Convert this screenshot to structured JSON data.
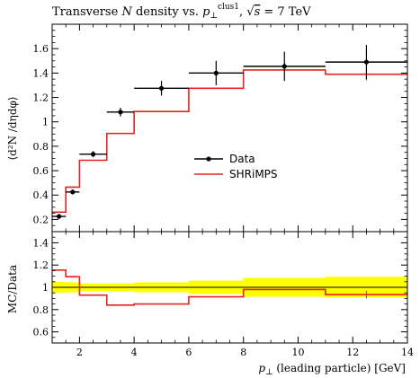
{
  "chart_data": [
    {
      "type": "line",
      "title": "Transverse N density vs. p⊥clus1, √s = 7 TeV",
      "title_parts": {
        "prefix": "Transverse ",
        "var": "N",
        "mid": " density vs. ",
        "sym": "p",
        "sym_sub": "⊥",
        "sym_sup": "clus1",
        "sep": ", ",
        "sqrt_expr": "s",
        "suffix": " = 7 TeV"
      },
      "ylabel": "⟨d²N /dηdφ⟩",
      "xlim": [
        1,
        14
      ],
      "ylim": [
        0.1,
        1.8
      ],
      "yticks": [
        0.2,
        0.4,
        0.6,
        0.8,
        1.0,
        1.2,
        1.4,
        1.6
      ],
      "ytick_labels": [
        "0.2",
        "0.4",
        "0.6",
        "0.8",
        "1",
        "1.2",
        "1.4",
        "1.6"
      ],
      "legend_position": "center-right",
      "series": [
        {
          "name": "Data",
          "color": "#000000",
          "style": "points-with-errors",
          "points": [
            {
              "xlo": 1.0,
              "xhi": 1.5,
              "x": 1.25,
              "y": 0.225,
              "err": 0.02
            },
            {
              "xlo": 1.5,
              "xhi": 2.0,
              "x": 1.75,
              "y": 0.425,
              "err": 0.02
            },
            {
              "xlo": 2.0,
              "xhi": 3.0,
              "x": 2.5,
              "y": 0.735,
              "err": 0.025
            },
            {
              "xlo": 3.0,
              "xhi": 4.0,
              "x": 3.5,
              "y": 1.08,
              "err": 0.035
            },
            {
              "xlo": 4.0,
              "xhi": 6.0,
              "x": 5.0,
              "y": 1.275,
              "err": 0.06
            },
            {
              "xlo": 6.0,
              "xhi": 8.0,
              "x": 7.0,
              "y": 1.4,
              "err": 0.1
            },
            {
              "xlo": 8.0,
              "xhi": 11.0,
              "x": 9.5,
              "y": 1.455,
              "err": 0.12
            },
            {
              "xlo": 11.0,
              "xhi": 14.0,
              "x": 12.5,
              "y": 1.49,
              "err": 0.14
            }
          ]
        },
        {
          "name": "SHRiMPS",
          "color": "#e8231f",
          "style": "step",
          "edges": [
            1.0,
            1.5,
            2.0,
            3.0,
            4.0,
            6.0,
            8.0,
            11.0,
            14.0
          ],
          "values": [
            0.26,
            0.465,
            0.685,
            0.905,
            1.085,
            1.275,
            1.425,
            1.39
          ],
          "err_markers": [
            {
              "x": 12.5,
              "lo": 1.34,
              "hi": 1.44
            }
          ]
        }
      ]
    },
    {
      "type": "line",
      "ylabel": "MC/Data",
      "xlabel": "p⊥ (leading particle) [GeV]",
      "xlabel_parts": {
        "sym": "p",
        "sub": "⊥",
        "rest": " (leading particle) [GeV]"
      },
      "xlim": [
        1,
        14
      ],
      "ylim": [
        0.5,
        1.5
      ],
      "yticks": [
        0.6,
        0.8,
        1.0,
        1.2,
        1.4
      ],
      "ytick_labels": [
        "0.6",
        "0.8",
        "1",
        "1.2",
        "1.4"
      ],
      "xticks": [
        2,
        4,
        6,
        8,
        10,
        12,
        14
      ],
      "xtick_labels": [
        "2",
        "4",
        "6",
        "8",
        "10",
        "12",
        "14"
      ],
      "band": {
        "color": "#ffff00",
        "edges": [
          1.0,
          1.5,
          2.0,
          3.0,
          4.0,
          6.0,
          8.0,
          11.0,
          14.0
        ],
        "lo": [
          0.95,
          0.955,
          0.965,
          0.965,
          0.955,
          0.94,
          0.915,
          0.91
        ],
        "hi": [
          1.05,
          1.045,
          1.035,
          1.035,
          1.045,
          1.06,
          1.085,
          1.095
        ]
      },
      "reference": 1.0,
      "series": [
        {
          "name": "SHRiMPS",
          "color": "#e8231f",
          "style": "step",
          "edges": [
            1.0,
            1.5,
            2.0,
            3.0,
            4.0,
            6.0,
            8.0,
            11.0,
            14.0
          ],
          "values": [
            1.155,
            1.095,
            0.93,
            0.84,
            0.85,
            0.915,
            0.98,
            0.935
          ],
          "err_markers": [
            {
              "x": 12.5,
              "lo": 0.9,
              "hi": 0.97
            }
          ]
        }
      ]
    }
  ]
}
